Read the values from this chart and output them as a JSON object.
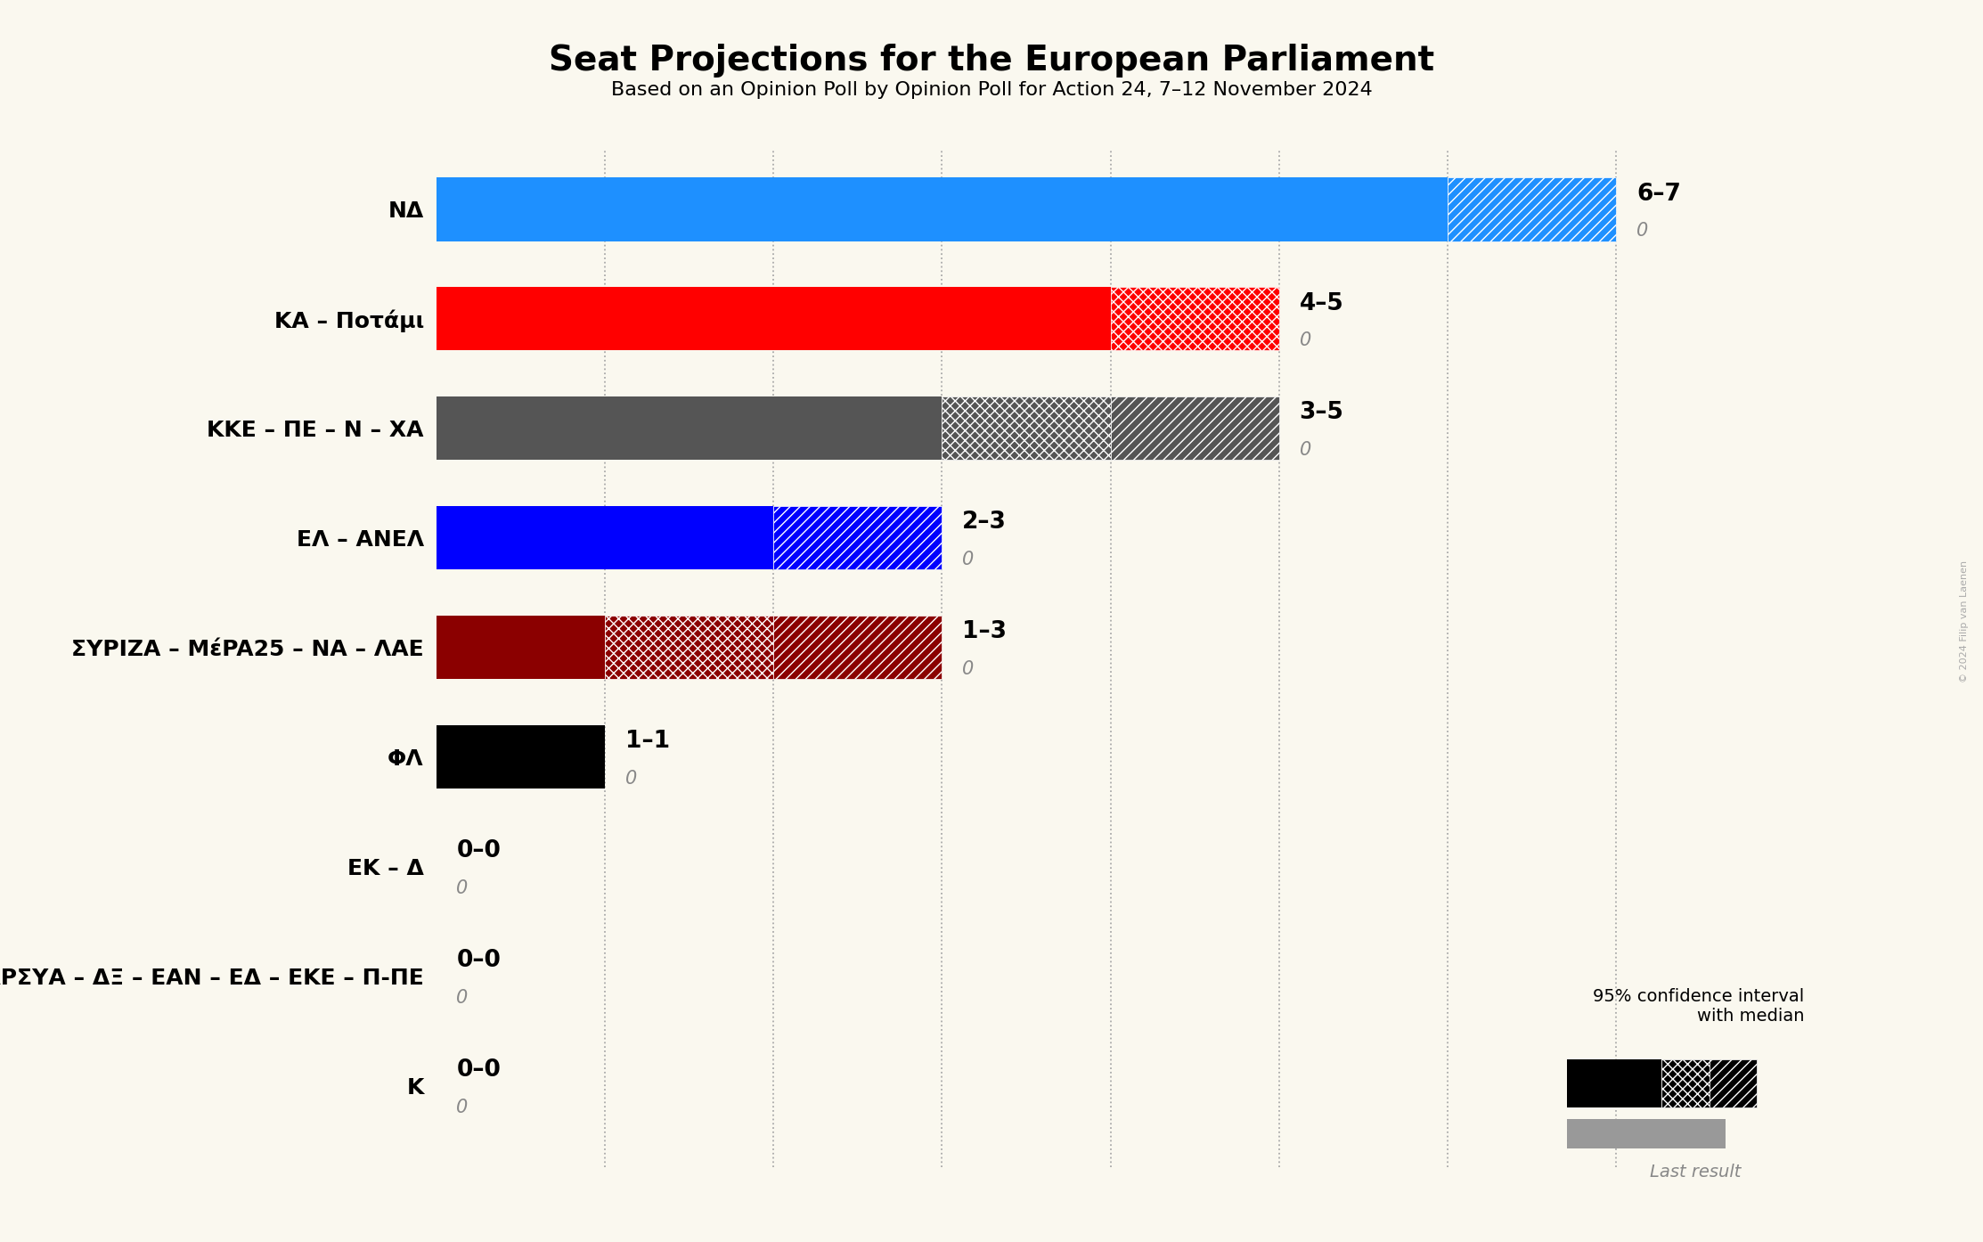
{
  "title": "Seat Projections for the European Parliament",
  "subtitle": "Based on an Opinion Poll by Opinion Poll for Action 24, 7–12 November 2024",
  "background_color": "#faf8ef",
  "parties": [
    "NΔ",
    "ΚΑ – Ποτάμι",
    "ΚΚΕ – ΠΕ – N – ΧΑ",
    "ΕΛ – ΑΝΕΛ",
    "ΣΥΡΙΖΑ – ΜέPA25 – ΝΑ – ΛΑΕ",
    "ΦΛ",
    "ΕΚ – Δ",
    "Σπαρ – ΑΝΤΑΡΣΥΑ – ΔΞ – ΕΑΝ – ΕΔ – ΕΚΕ – Π-ΠΕ",
    "Κ"
  ],
  "range_labels": [
    "6–7",
    "4–5",
    "3–5",
    "2–3",
    "1–3",
    "1–1",
    "0–0",
    "0–0",
    "0–0"
  ],
  "last_results": [
    0,
    0,
    0,
    0,
    0,
    0,
    0,
    0,
    0
  ],
  "high_values": [
    7,
    5,
    5,
    3,
    3,
    1,
    0,
    0,
    0
  ],
  "colors": [
    "#1e90ff",
    "#ff0000",
    "#555555",
    "#0000ff",
    "#8b0000",
    "#000000",
    "#999999",
    "#999999",
    "#999999"
  ],
  "bar_configs": [
    {
      "solid": [
        0,
        6
      ],
      "cross": null,
      "diag": [
        6,
        7
      ]
    },
    {
      "solid": [
        0,
        4
      ],
      "cross": [
        4,
        5
      ],
      "diag": null
    },
    {
      "solid": [
        0,
        3
      ],
      "cross": [
        3,
        4
      ],
      "diag": [
        4,
        5
      ]
    },
    {
      "solid": [
        0,
        2
      ],
      "cross": null,
      "diag": [
        2,
        3
      ]
    },
    {
      "solid": [
        0,
        1
      ],
      "cross": [
        1,
        2
      ],
      "diag": [
        2,
        3
      ]
    },
    {
      "solid": [
        0,
        1
      ],
      "cross": null,
      "diag": null
    },
    {
      "solid": null,
      "cross": null,
      "diag": null
    },
    {
      "solid": null,
      "cross": null,
      "diag": null
    },
    {
      "solid": null,
      "cross": null,
      "diag": null
    }
  ],
  "xlim": [
    0,
    8
  ],
  "bar_height": 0.58,
  "copyright": "© 2024 Filip van Laenen",
  "legend_title": "95% confidence interval\nwith median",
  "legend_last": "Last result"
}
